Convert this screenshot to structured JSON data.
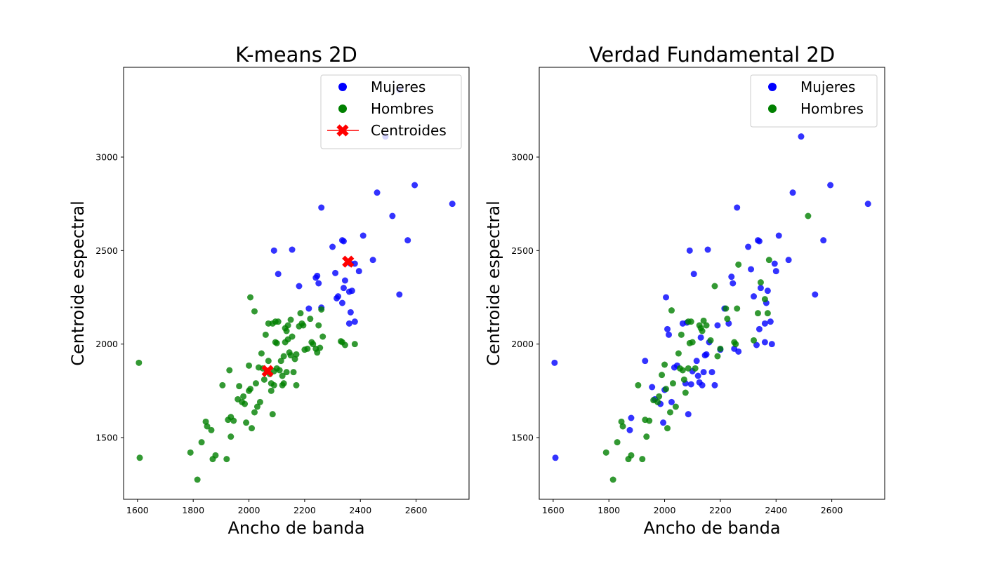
{
  "chart_data": [
    {
      "type": "scatter",
      "title": "K-means 2D",
      "xlabel": "Ancho de banda",
      "ylabel": "Centroide espectral",
      "xlim": [
        1550,
        2790
      ],
      "ylim": [
        1170,
        3480
      ],
      "xticks": [
        1600,
        1800,
        2000,
        2200,
        2400,
        2600
      ],
      "yticks": [
        1500,
        2000,
        2500,
        3000
      ],
      "grid": false,
      "legend_position": "top-right",
      "legend": [
        "Mujeres",
        "Hombres",
        "Centroides"
      ],
      "colors": {
        "Mujeres": "#0000ff",
        "Hombres": "#008000",
        "Centroides": "#ff0000"
      },
      "series": [
        {
          "name": "Mujeres",
          "x": [
            2540,
            2490,
            2595,
            2730,
            2460,
            2515,
            2570,
            2540,
            2260,
            2300,
            2335,
            2340,
            2410,
            2395,
            2380,
            2365,
            2445,
            2090,
            2155,
            2105,
            2180,
            2240,
            2245,
            2250,
            2310,
            2345,
            2370,
            2360,
            2340,
            2320,
            2315,
            2215,
            2260,
            2365,
            2380,
            2360,
            2335
          ],
          "y": [
            3360,
            3110,
            2850,
            2750,
            2810,
            2685,
            2555,
            2265,
            2730,
            2520,
            2555,
            2550,
            2580,
            2390,
            2430,
            2430,
            2450,
            2500,
            2505,
            2375,
            2310,
            2355,
            2365,
            2325,
            2380,
            2340,
            2285,
            2280,
            2300,
            2255,
            2245,
            2190,
            2195,
            2170,
            2120,
            2110,
            2220
          ]
        },
        {
          "name": "Hombres",
          "x": [
            1605,
            1608,
            1790,
            1815,
            1830,
            1845,
            1850,
            1865,
            1870,
            1880,
            1905,
            1920,
            1925,
            1935,
            1935,
            1930,
            1945,
            1960,
            1965,
            1975,
            1980,
            1985,
            1990,
            2000,
            2005,
            2010,
            2000,
            2005,
            2020,
            2025,
            2030,
            2035,
            2040,
            2045,
            2050,
            2055,
            2060,
            2065,
            2070,
            2070,
            2075,
            2080,
            2080,
            2085,
            2085,
            2090,
            2090,
            2095,
            2095,
            2100,
            2100,
            2105,
            2110,
            2115,
            2120,
            2120,
            2125,
            2125,
            2130,
            2130,
            2135,
            2135,
            2140,
            2140,
            2145,
            2150,
            2150,
            2155,
            2160,
            2165,
            2170,
            2170,
            2180,
            2185,
            2190,
            2195,
            2200,
            2210,
            2220,
            2225,
            2230,
            2240,
            2245,
            2250,
            2255,
            2260,
            2265,
            2330,
            2335,
            2345,
            2380,
            2020
          ],
          "y": [
            1900,
            1392,
            1420,
            1275,
            1475,
            1585,
            1560,
            1540,
            1385,
            1405,
            1780,
            1385,
            1595,
            1610,
            1505,
            1860,
            1590,
            1705,
            1775,
            1690,
            1720,
            1680,
            1580,
            1885,
            1760,
            1550,
            1750,
            2250,
            1635,
            1790,
            1665,
            1875,
            1690,
            1950,
            1870,
            1810,
            2050,
            1855,
            1910,
            2110,
            1840,
            1790,
            1750,
            1625,
            2110,
            1780,
            1855,
            2120,
            2010,
            2005,
            1870,
            2120,
            1860,
            1910,
            1830,
            1780,
            1935,
            1790,
            2085,
            2010,
            2070,
            1850,
            2025,
            2100,
            1955,
            2130,
            1940,
            2040,
            1850,
            1920,
            1945,
            1780,
            2095,
            2165,
            2110,
            2100,
            1970,
            1975,
            2135,
            2010,
            2000,
            1975,
            1955,
            2100,
            1980,
            2185,
            2040,
            2015,
            2010,
            1995,
            2000,
            2175
          ],
          "labeled_by": "cluster"
        },
        {
          "name": "Centroides",
          "x": [
            2067,
            2356
          ],
          "y": [
            1856,
            2441
          ]
        }
      ]
    },
    {
      "type": "scatter",
      "title": "Verdad Fundamental 2D",
      "xlabel": "Ancho de banda",
      "ylabel": "Centroide espectral",
      "xlim": [
        1550,
        2790
      ],
      "ylim": [
        1170,
        3480
      ],
      "xticks": [
        1600,
        1800,
        2000,
        2200,
        2400,
        2600
      ],
      "yticks": [
        1500,
        2000,
        2500,
        3000
      ],
      "grid": false,
      "legend_position": "top-right",
      "legend": [
        "Mujeres",
        "Hombres"
      ],
      "colors": {
        "Mujeres": "#0000ff",
        "Hombres": "#008000"
      },
      "series": [
        {
          "name": "Mujeres",
          "x": [
            1605,
            1608,
            1875,
            1880,
            1930,
            1955,
            1965,
            1985,
            1995,
            2000,
            2005,
            2010,
            2015,
            2025,
            2035,
            2045,
            2065,
            2075,
            2080,
            2085,
            2090,
            2095,
            2100,
            2105,
            2115,
            2120,
            2125,
            2130,
            2135,
            2140,
            2145,
            2150,
            2155,
            2160,
            2170,
            2180,
            2190,
            2200,
            2215,
            2230,
            2240,
            2245,
            2250,
            2260,
            2265,
            2300,
            2310,
            2320,
            2330,
            2335,
            2340,
            2345,
            2360,
            2365,
            2370,
            2380,
            2385,
            2395,
            2400,
            2410,
            2445,
            2460,
            2490,
            2540,
            2570,
            2595,
            2730,
            2360,
            2340
          ],
          "y": [
            1900,
            1392,
            1540,
            1605,
            1910,
            1770,
            1705,
            1680,
            1580,
            1755,
            2250,
            2080,
            2050,
            1690,
            1875,
            1885,
            2110,
            1790,
            2115,
            1625,
            2500,
            1785,
            1855,
            2375,
            1910,
            1830,
            1795,
            2035,
            1780,
            1850,
            1940,
            1945,
            2505,
            2010,
            1850,
            1780,
            2100,
            1970,
            2190,
            2110,
            2360,
            2325,
            1975,
            2730,
            1960,
            2520,
            2400,
            2255,
            1995,
            2555,
            2550,
            2300,
            2010,
            2220,
            2285,
            2120,
            2000,
            2430,
            2390,
            2580,
            2450,
            2810,
            3110,
            2265,
            2555,
            2850,
            2750,
            2110,
            2080
          ]
        },
        {
          "name": "Hombres",
          "x": [
            1790,
            1815,
            1830,
            1845,
            1850,
            1870,
            1880,
            1905,
            1920,
            1930,
            1935,
            1945,
            1960,
            1975,
            1980,
            1990,
            2000,
            2005,
            2010,
            2020,
            2025,
            2030,
            2040,
            2050,
            2055,
            2060,
            2070,
            2075,
            2085,
            2090,
            2095,
            2100,
            2110,
            2125,
            2130,
            2135,
            2140,
            2150,
            2165,
            2180,
            2190,
            2200,
            2220,
            2225,
            2250,
            2255,
            2260,
            2265,
            2320,
            2335,
            2345,
            2360,
            2370,
            2375,
            2515,
            2085,
            2065
          ],
          "y": [
            1420,
            1275,
            1475,
            1585,
            1560,
            1385,
            1405,
            1780,
            1385,
            1595,
            1505,
            1590,
            1700,
            1690,
            1720,
            1835,
            1890,
            1760,
            1550,
            1635,
            2180,
            1790,
            1665,
            1950,
            1870,
            2050,
            1810,
            1740,
            2120,
            2005,
            2120,
            2010,
            1870,
            2100,
            2085,
            2070,
            2125,
            2100,
            2020,
            2310,
            1935,
            1975,
            2190,
            2135,
            2010,
            2000,
            2190,
            2425,
            2020,
            2165,
            2330,
            2240,
            2165,
            2450,
            2685,
            1870,
            1860
          ]
        }
      ]
    }
  ]
}
